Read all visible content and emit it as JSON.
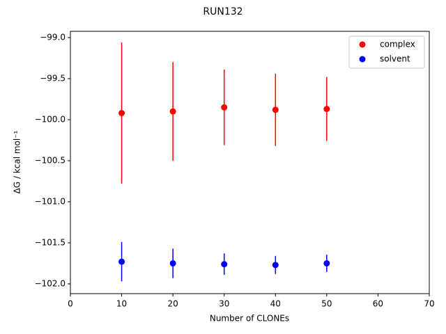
{
  "chart_data": {
    "type": "errorbar",
    "title": "RUN132",
    "xlabel": "Number of CLONEs",
    "ylabel": "ΔG / kcal mol⁻¹",
    "xlim": [
      0,
      70
    ],
    "xticks": [
      0,
      10,
      20,
      30,
      40,
      50,
      60,
      70
    ],
    "ylim": [
      -102.119,
      -98.924
    ],
    "yticks": [
      {
        "value": -99.0,
        "label": "−99.0"
      },
      {
        "value": -99.5,
        "label": "−99.5"
      },
      {
        "value": -100.0,
        "label": "−100.0"
      },
      {
        "value": -100.5,
        "label": "−100.5"
      },
      {
        "value": -101.0,
        "label": "−101.0"
      },
      {
        "value": -101.5,
        "label": "−101.5"
      },
      {
        "value": -102.0,
        "label": "−102.0"
      }
    ],
    "legend": "upper right",
    "grid": false,
    "series": [
      {
        "name": "complex",
        "color": "#ff0000",
        "x": [
          10,
          20,
          30,
          40,
          50
        ],
        "values": [
          -99.92,
          -99.9,
          -99.85,
          -99.88,
          -99.87
        ],
        "errors": [
          0.86,
          0.6,
          0.46,
          0.44,
          0.39
        ]
      },
      {
        "name": "solvent",
        "color": "#0000ff",
        "x": [
          10,
          20,
          30,
          40,
          50
        ],
        "values": [
          -101.73,
          -101.75,
          -101.76,
          -101.77,
          -101.75
        ],
        "errors": [
          0.24,
          0.18,
          0.13,
          0.11,
          0.105
        ]
      }
    ]
  }
}
